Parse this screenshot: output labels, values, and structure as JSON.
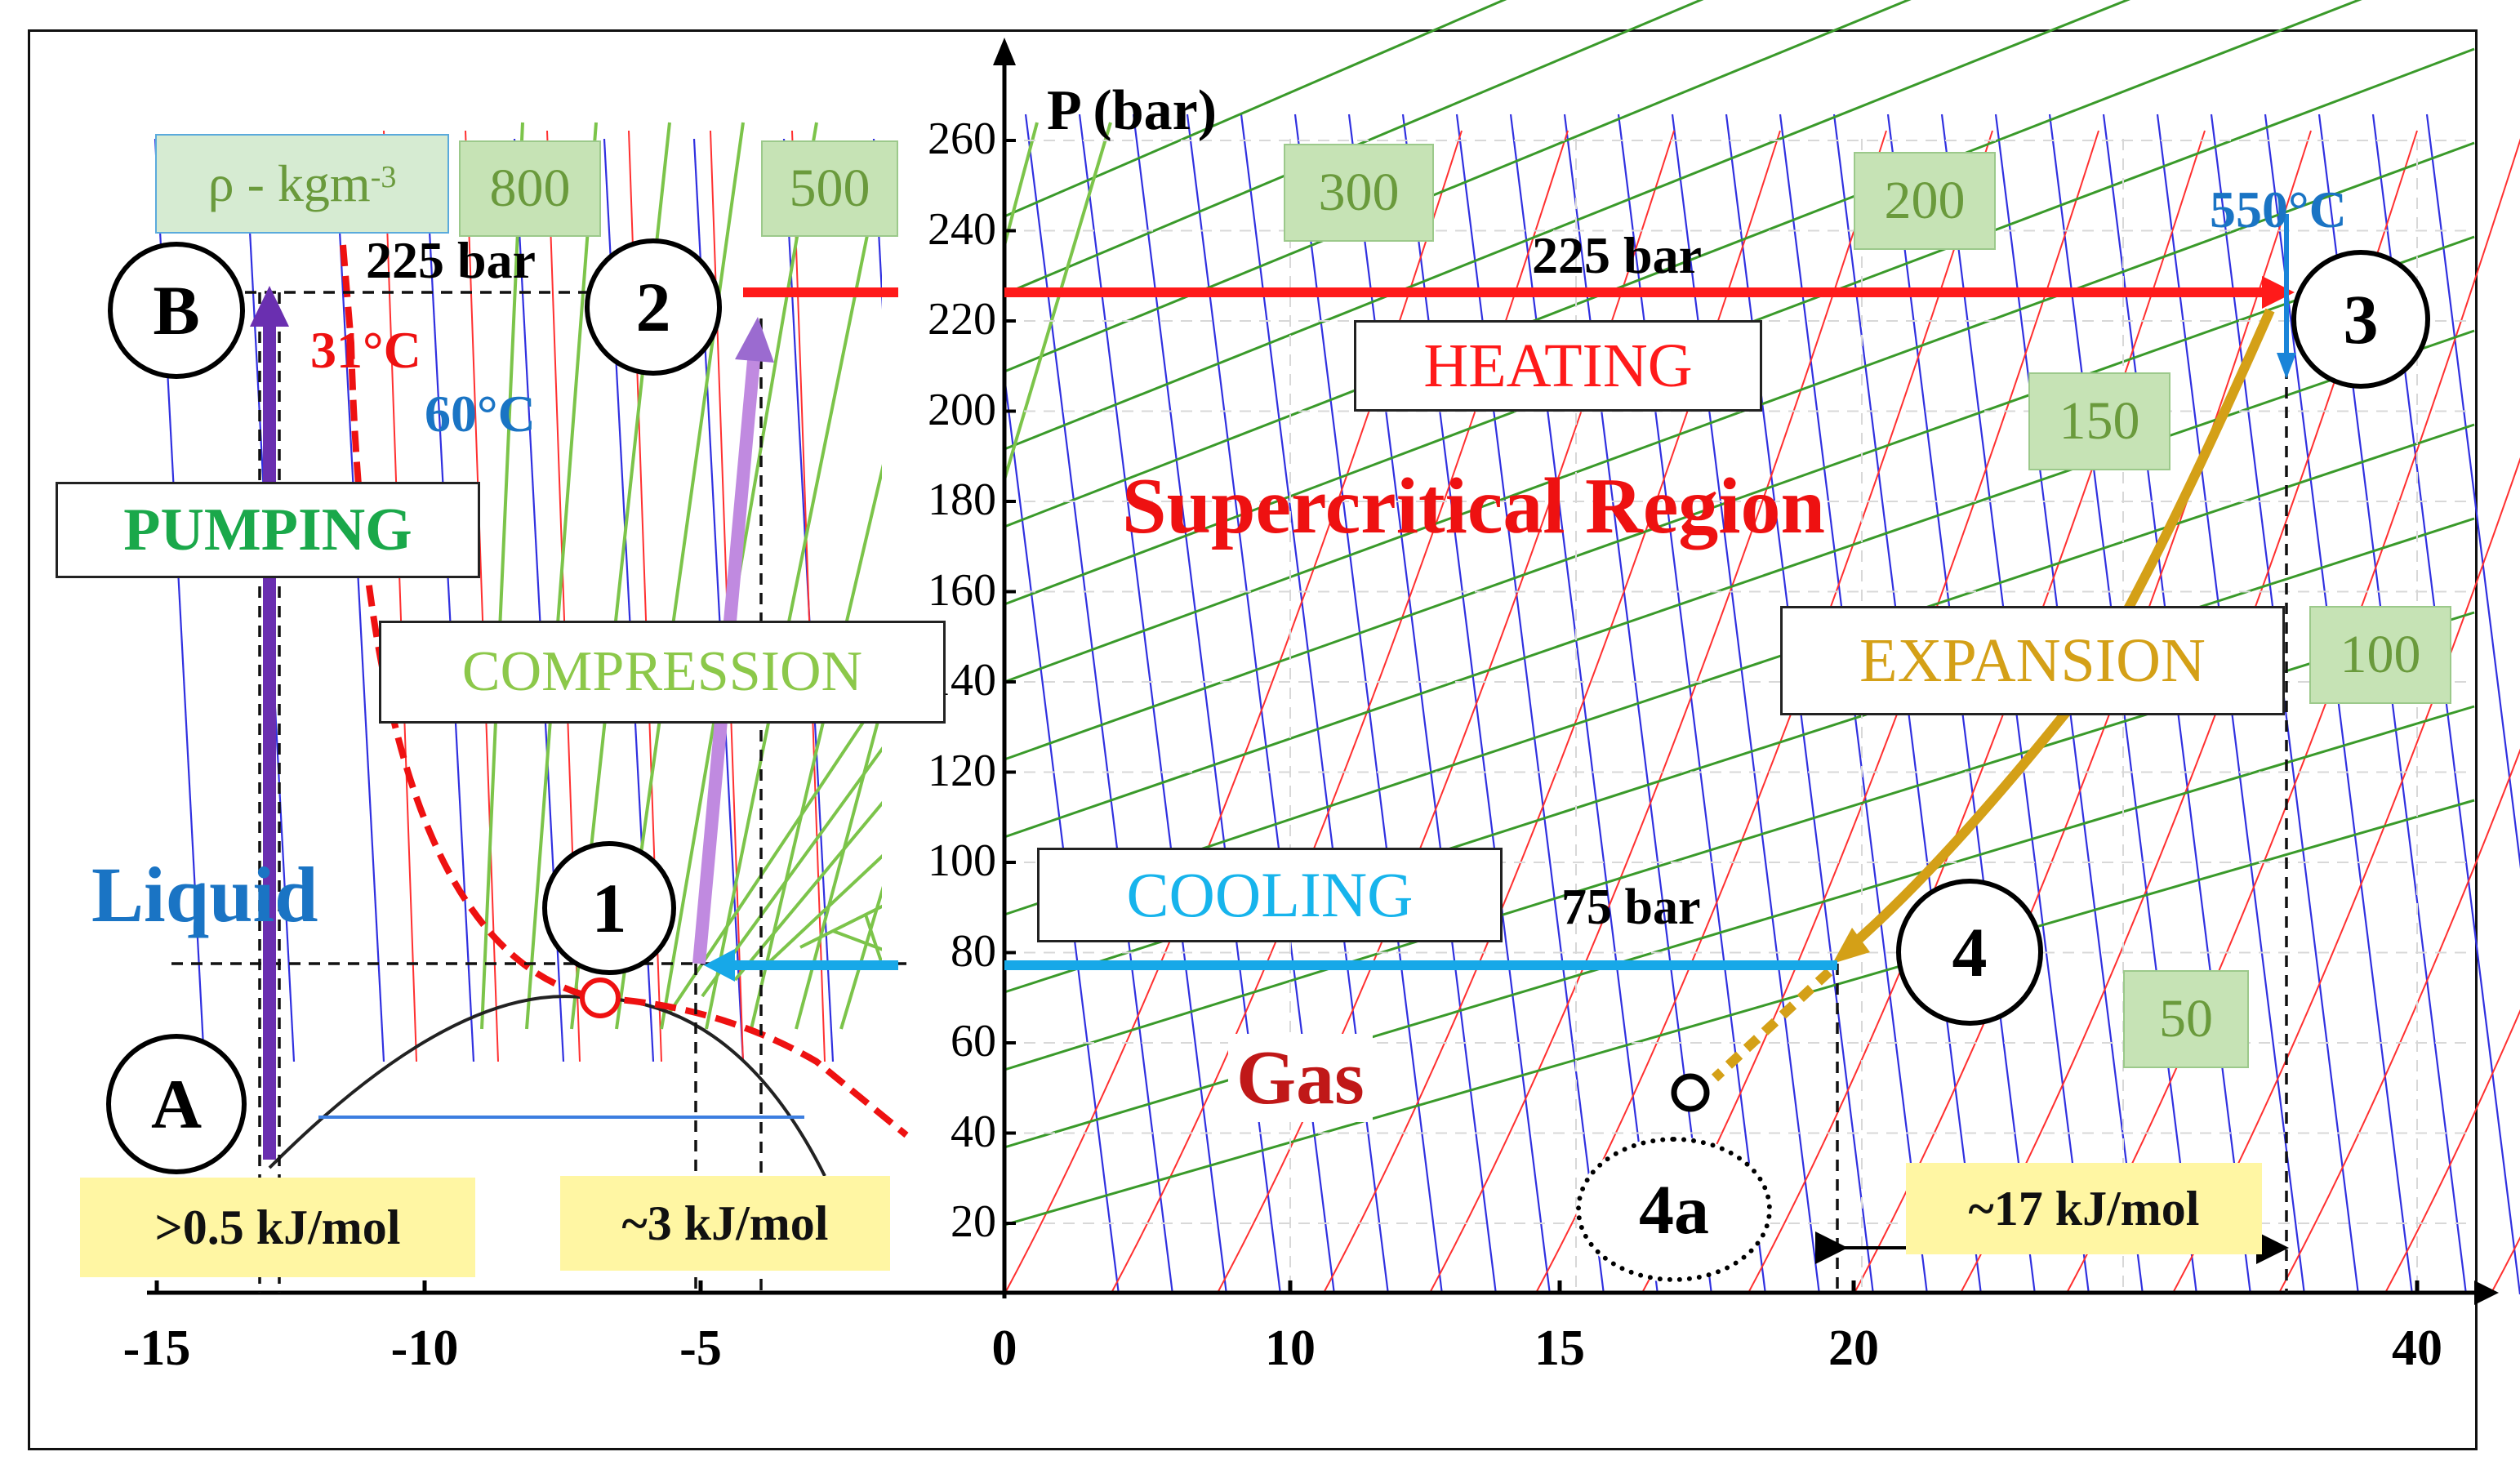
{
  "axis": {
    "y_title": "P (bar)",
    "y_ticks": [
      "20",
      "40",
      "60",
      "80",
      "100",
      "120",
      "140",
      "160",
      "180",
      "200",
      "220",
      "240",
      "260"
    ],
    "x_ticks": [
      "-15",
      "-10",
      "-5",
      "0",
      "10",
      "15",
      "20",
      "40"
    ]
  },
  "density": {
    "header": "ρ - kgm",
    "header_sup": "-3",
    "labels": [
      "800",
      "500",
      "300",
      "200",
      "150",
      "100",
      "50"
    ]
  },
  "states": {
    "A": "A",
    "B": "B",
    "s1": "1",
    "s2": "2",
    "s3": "3",
    "s4": "4",
    "s4a": "4a"
  },
  "processes": {
    "pumping": "PUMPING",
    "compression": "COMPRESSION",
    "heating": "HEATING",
    "expansion": "EXPANSION",
    "cooling": "COOLING"
  },
  "regions": {
    "supercritical": "Supercritical Region",
    "liquid": "Liquid",
    "gas": "Gas"
  },
  "annotations": {
    "p225_left": "225 bar",
    "p225_right": "225 bar",
    "p75": "75 bar",
    "t31": "31°C",
    "t60": "60°C",
    "t550": "550°C"
  },
  "energies": {
    "pump": ">0.5 kJ/mol",
    "comp": "~3 kJ/mol",
    "heat": "~17 kJ/mol"
  },
  "colors": {
    "heating": "#ff1a1a",
    "cooling": "#17a8e8",
    "expansion": "#d4a017",
    "pumping": "#6a2fb0",
    "compression": "#c08ae0",
    "density_lines": "#3a9a2a",
    "isotherms": "#ff3030",
    "isentropes": "#3030e0"
  }
}
